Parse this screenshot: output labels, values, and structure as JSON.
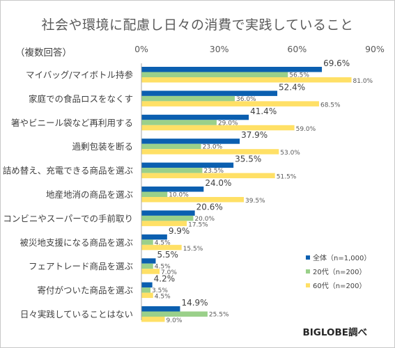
{
  "title": "社会や環境に配慮し日々の消費で実践していること",
  "note": "（複数回答）",
  "source": "BIGLOBE調べ",
  "colors": {
    "all": "#0b5fb0",
    "twenties": "#9ad08a",
    "sixties": "#ffe066"
  },
  "chart_data": {
    "type": "bar",
    "orientation": "horizontal",
    "title": "社会や環境に配慮し日々の消費で実践していること",
    "xlim": [
      0,
      90
    ],
    "x_ticks": [
      "0%",
      "30%",
      "60%",
      "90%"
    ],
    "x_tick_values": [
      0,
      30,
      60,
      90
    ],
    "legend_position": "bottom-right",
    "grid": false,
    "categories": [
      "マイバッグ/マイボトル持参",
      "家庭での食品ロスをなくす",
      "箸やビニール袋など再利用する",
      "過剰包装を断る",
      "詰め替え、充電できる商品を選ぶ",
      "地産地消の商品を選ぶ",
      "コンビニやスーパーでの手前取り",
      "被災地支援になる商品を選ぶ",
      "フェアトレード商品を選ぶ",
      "寄付がついた商品を選ぶ",
      "日々実践していることはない"
    ],
    "series": [
      {
        "name": "全体（n=1,000）",
        "values": [
          69.6,
          52.4,
          41.4,
          37.9,
          35.5,
          24.0,
          20.6,
          9.9,
          5.5,
          4.2,
          14.9
        ],
        "labels": [
          "69.6%",
          "52.4%",
          "41.4%",
          "37.9%",
          "35.5%",
          "24.0%",
          "20.6%",
          "9.9%",
          "5.5%",
          "4.2%",
          "14.9%"
        ]
      },
      {
        "name": "20代（n=200）",
        "values": [
          56.5,
          36.0,
          29.0,
          23.0,
          23.5,
          10.0,
          20.0,
          4.5,
          4.5,
          3.5,
          25.5
        ],
        "labels": [
          "56.5%",
          "36.0%",
          "29.0%",
          "23.0%",
          "23.5%",
          "10.0%",
          "20.0%",
          "4.5%",
          "4.5%",
          "3.5%",
          "25.5%"
        ]
      },
      {
        "name": "60代（n=200）",
        "values": [
          81.0,
          68.5,
          59.0,
          53.0,
          51.5,
          39.5,
          17.5,
          15.5,
          7.0,
          4.5,
          9.0
        ],
        "labels": [
          "81.0%",
          "68.5%",
          "59.0%",
          "53.0%",
          "51.5%",
          "39.5%",
          "17.5%",
          "15.5%",
          "7.0%",
          "4.5%",
          "9.0%"
        ]
      }
    ]
  }
}
